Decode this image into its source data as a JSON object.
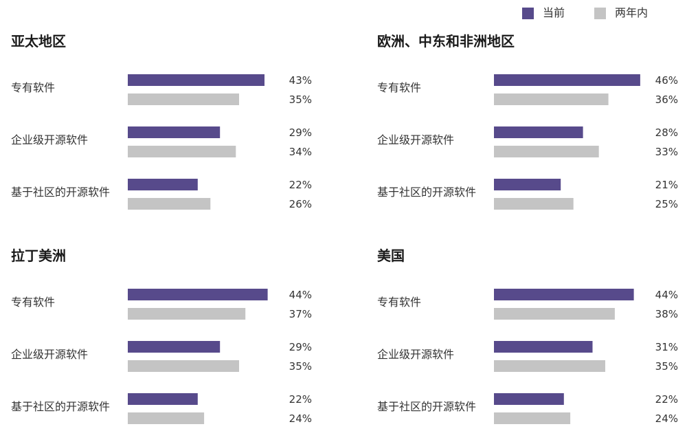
{
  "legend": {
    "current_label": "当前",
    "two_years_label": "两年内"
  },
  "colors": {
    "current": "#574a8b",
    "two_years": "#c4c4c4"
  },
  "chart_data": [
    {
      "type": "bar",
      "title": "亚太地区",
      "categories": [
        "专有软件",
        "企业级开源软件",
        "基于社区的开源软件"
      ],
      "series": [
        {
          "name": "当前",
          "values": [
            43,
            29,
            22
          ]
        },
        {
          "name": "两年内",
          "values": [
            35,
            34,
            26
          ]
        }
      ],
      "unit": "%"
    },
    {
      "type": "bar",
      "title": "欧洲、中东和非洲地区",
      "categories": [
        "专有软件",
        "企业级开源软件",
        "基于社区的开源软件"
      ],
      "series": [
        {
          "name": "当前",
          "values": [
            46,
            28,
            21
          ]
        },
        {
          "name": "两年内",
          "values": [
            36,
            33,
            25
          ]
        }
      ],
      "unit": "%"
    },
    {
      "type": "bar",
      "title": "拉丁美洲",
      "categories": [
        "专有软件",
        "企业级开源软件",
        "基于社区的开源软件"
      ],
      "series": [
        {
          "name": "当前",
          "values": [
            44,
            29,
            22
          ]
        },
        {
          "name": "两年内",
          "values": [
            37,
            35,
            24
          ]
        }
      ],
      "unit": "%"
    },
    {
      "type": "bar",
      "title": "美国",
      "categories": [
        "专有软件",
        "企业级开源软件",
        "基于社区的开源软件"
      ],
      "series": [
        {
          "name": "当前",
          "values": [
            44,
            31,
            22
          ]
        },
        {
          "name": "两年内",
          "values": [
            38,
            35,
            24
          ]
        }
      ],
      "unit": "%"
    }
  ]
}
